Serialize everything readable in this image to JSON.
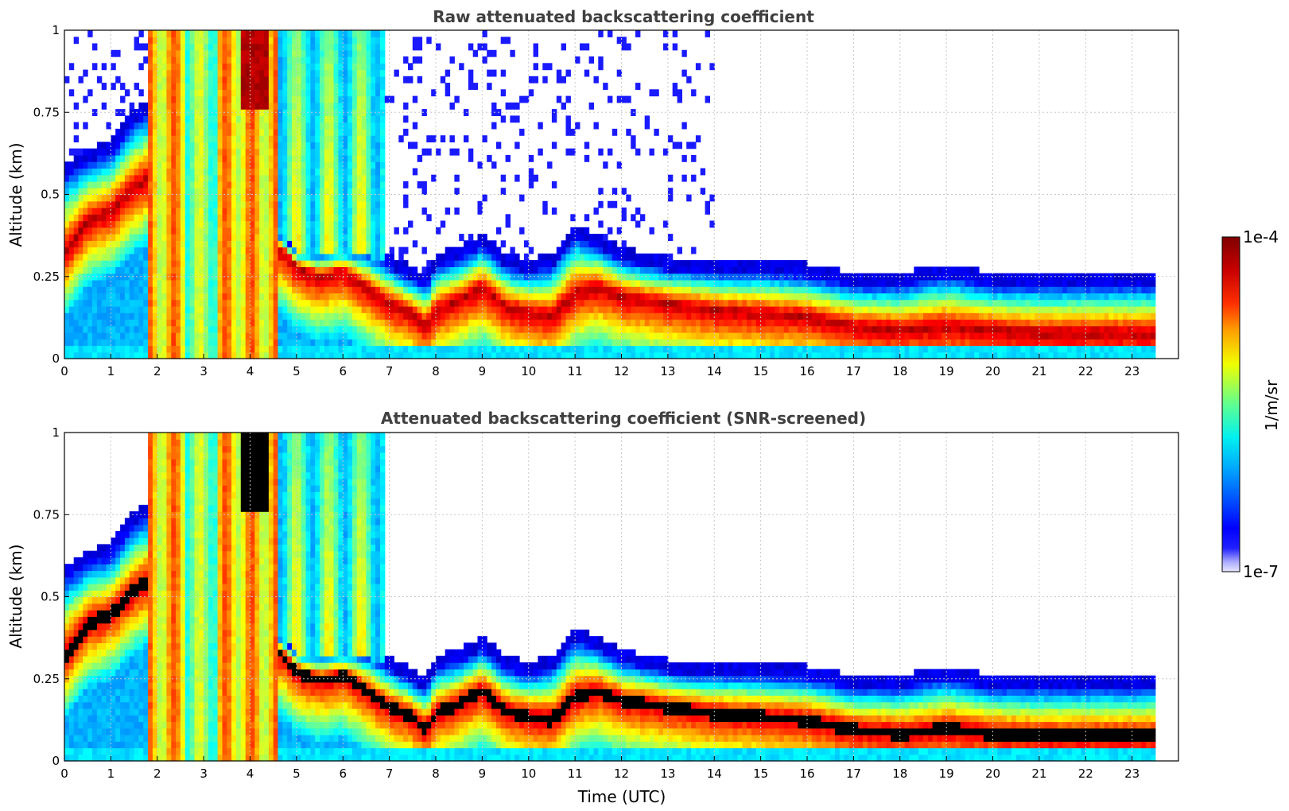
{
  "chart_data": [
    {
      "type": "heatmap",
      "title": "Raw attenuated backscattering coefficient",
      "xlabel": "",
      "ylabel": "Altitude (km)",
      "xlim": [
        0,
        24
      ],
      "ylim": [
        0,
        1
      ],
      "x_ticks": [
        "0",
        "1",
        "2",
        "3",
        "4",
        "5",
        "6",
        "7",
        "8",
        "9",
        "10",
        "11",
        "12",
        "13",
        "14",
        "15",
        "16",
        "17",
        "18",
        "19",
        "20",
        "21",
        "22",
        "23"
      ],
      "y_ticks": [
        "0",
        "0.25",
        "0.5",
        "0.75",
        "1"
      ],
      "data_end_hour": 23.5,
      "screened": false,
      "layer_profile": {
        "hours": [
          0,
          0.5,
          1,
          1.5,
          1.8,
          4.7,
          5,
          5.5,
          6,
          6.5,
          7,
          7.5,
          7.8,
          8,
          8.5,
          9,
          9.5,
          10,
          10.5,
          11,
          11.5,
          12,
          13,
          14,
          15,
          16,
          17,
          18,
          19,
          20,
          21,
          22,
          23,
          23.5
        ],
        "peak_km": [
          0.32,
          0.42,
          0.45,
          0.52,
          0.55,
          0.33,
          0.28,
          0.25,
          0.27,
          0.22,
          0.17,
          0.14,
          0.1,
          0.15,
          0.18,
          0.22,
          0.16,
          0.14,
          0.13,
          0.2,
          0.22,
          0.19,
          0.17,
          0.15,
          0.14,
          0.13,
          0.1,
          0.09,
          0.1,
          0.09,
          0.08,
          0.08,
          0.08,
          0.08
        ],
        "top_km": [
          0.55,
          0.6,
          0.62,
          0.72,
          0.74,
          0.37,
          0.33,
          0.32,
          0.33,
          0.32,
          0.28,
          0.24,
          0.22,
          0.28,
          0.3,
          0.34,
          0.28,
          0.26,
          0.28,
          0.37,
          0.34,
          0.3,
          0.27,
          0.26,
          0.26,
          0.25,
          0.22,
          0.22,
          0.25,
          0.22,
          0.22,
          0.22,
          0.22,
          0.22
        ]
      }
    },
    {
      "type": "heatmap",
      "title": "Attenuated backscattering coefficient (SNR-screened)",
      "xlabel": "Time (UTC)",
      "ylabel": "Altitude (km)",
      "xlim": [
        0,
        24
      ],
      "ylim": [
        0,
        1
      ],
      "x_ticks": [
        "0",
        "1",
        "2",
        "3",
        "4",
        "5",
        "6",
        "7",
        "8",
        "9",
        "10",
        "11",
        "12",
        "13",
        "14",
        "15",
        "16",
        "17",
        "18",
        "19",
        "20",
        "21",
        "22",
        "23"
      ],
      "y_ticks": [
        "0",
        "0.25",
        "0.5",
        "0.75",
        "1"
      ],
      "data_end_hour": 23.5,
      "screened": true
    }
  ],
  "colorbar": {
    "min_label": "1e-7",
    "max_label": "1e-4",
    "unit_label": "1/m/sr",
    "colormap": "jet"
  }
}
